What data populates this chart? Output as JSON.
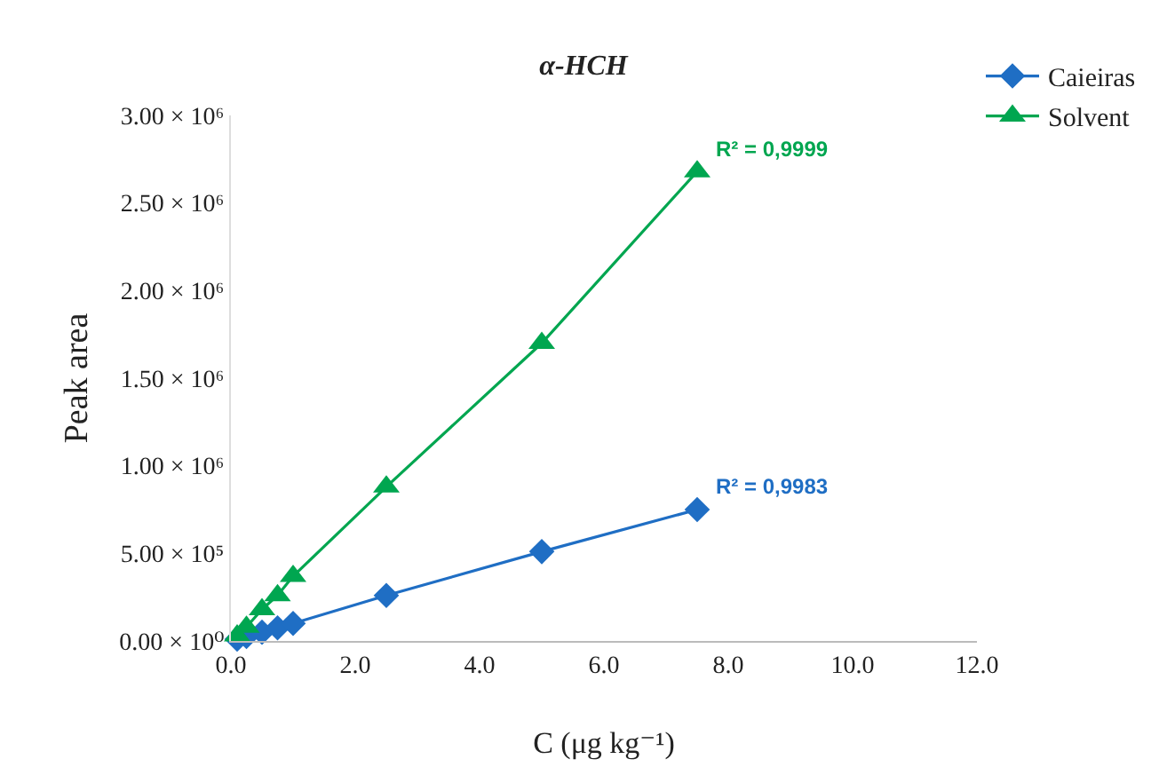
{
  "chart_data": {
    "type": "scatter",
    "title": "α-HCH",
    "xlabel": "C (μg kg⁻¹)",
    "ylabel": "Peak area",
    "x": [
      0.1,
      0.25,
      0.5,
      0.75,
      1.0,
      2.5,
      5.0,
      7.5
    ],
    "series": [
      {
        "name": "Caieiras",
        "color": "#1f6ec4",
        "marker": "diamond",
        "values": [
          10000,
          25000,
          50000,
          75000,
          100000,
          260000,
          510000,
          750000
        ]
      },
      {
        "name": "Solvent",
        "color": "#00a650",
        "marker": "triangle",
        "values": [
          30000,
          80000,
          180000,
          260000,
          370000,
          880000,
          1700000,
          2680000
        ]
      }
    ],
    "line_style": "solid",
    "xlim": [
      0,
      12
    ],
    "xticks": [
      {
        "value": 0,
        "label": "0.0"
      },
      {
        "value": 2,
        "label": "2.0"
      },
      {
        "value": 4,
        "label": "4.0"
      },
      {
        "value": 6,
        "label": "6.0"
      },
      {
        "value": 8,
        "label": "8.0"
      },
      {
        "value": 10,
        "label": "10.0"
      },
      {
        "value": 12,
        "label": "12.0"
      }
    ],
    "ylim": [
      0,
      3000000
    ],
    "yticks": [
      {
        "value": 0,
        "label": "0.00 × 10⁰"
      },
      {
        "value": 500000,
        "label": "5.00 × 10⁵"
      },
      {
        "value": 1000000,
        "label": "1.00 × 10⁶"
      },
      {
        "value": 1500000,
        "label": "1.50 × 10⁶"
      },
      {
        "value": 2000000,
        "label": "2.00 × 10⁶"
      },
      {
        "value": 2500000,
        "label": "2.50 × 10⁶"
      },
      {
        "value": 3000000,
        "label": "3.00 × 10⁶"
      }
    ],
    "grid": false,
    "legend": "top right",
    "annotations": [
      {
        "text": "R² = 0,9983",
        "x": 7.5,
        "y": 750000
      },
      {
        "text": "R² = 0,9999",
        "x": 7.5,
        "y": 2680000
      }
    ]
  }
}
